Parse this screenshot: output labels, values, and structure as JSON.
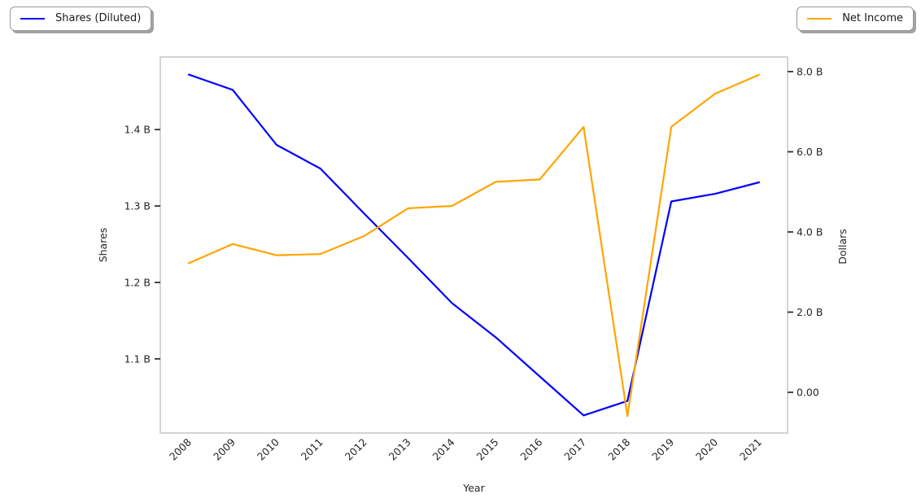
{
  "figure": {
    "legend_left": {
      "label": "Shares (Diluted)",
      "color": "#0000ff"
    },
    "legend_right": {
      "label": "Net Income",
      "color": "#ffa500"
    }
  },
  "chart_data": {
    "type": "line",
    "title": "",
    "xlabel": "Year",
    "grid": false,
    "background": "#ffffff",
    "spine_color": "#c9c9c9",
    "tick_color": "#262626",
    "text_color": "#262626",
    "legend_position": "outside top-left (Shares) and outside top-right (Net Income)",
    "x": [
      2008,
      2009,
      2010,
      2011,
      2012,
      2013,
      2014,
      2015,
      2016,
      2017,
      2018,
      2019,
      2020,
      2021
    ],
    "x_tick_labels": [
      "2008",
      "2009",
      "2010",
      "2011",
      "2012",
      "2013",
      "2014",
      "2015",
      "2016",
      "2017",
      "2018",
      "2019",
      "2020",
      "2021"
    ],
    "xlim": [
      2007.35,
      2021.65
    ],
    "left_axis": {
      "label": "Shares",
      "ylim": [
        1.003,
        1.495
      ],
      "units": "billions of shares",
      "ticks": [
        {
          "value": 1.4,
          "label": "1.4 B"
        },
        {
          "value": 1.3,
          "label": "1.3 B"
        },
        {
          "value": 1.2,
          "label": "1.2 B"
        },
        {
          "value": 1.1,
          "label": "1.1 B"
        }
      ]
    },
    "right_axis": {
      "label": "Dollars",
      "ylim": [
        -1.015,
        8.365
      ],
      "units": "billions of dollars",
      "ticks": [
        {
          "value": 8.0,
          "label": "8.0 B"
        },
        {
          "value": 6.0,
          "label": "6.0 B"
        },
        {
          "value": 4.0,
          "label": "4.0 B"
        },
        {
          "value": 2.0,
          "label": "2.0 B"
        },
        {
          "value": 0.0,
          "label": "0.00"
        }
      ]
    },
    "series": [
      {
        "name": "Shares (Diluted)",
        "axis": "left",
        "color": "#0000ff",
        "values": [
          1.472,
          1.452,
          1.38,
          1.349,
          1.29,
          1.232,
          1.173,
          1.128,
          1.077,
          1.026,
          1.045,
          1.306,
          1.316,
          1.331
        ]
      },
      {
        "name": "Net Income",
        "axis": "right",
        "color": "#ffa500",
        "values": [
          3.22,
          3.7,
          3.42,
          3.45,
          3.9,
          4.59,
          4.65,
          5.25,
          5.31,
          6.62,
          -0.59,
          6.62,
          7.45,
          7.92
        ]
      }
    ]
  }
}
